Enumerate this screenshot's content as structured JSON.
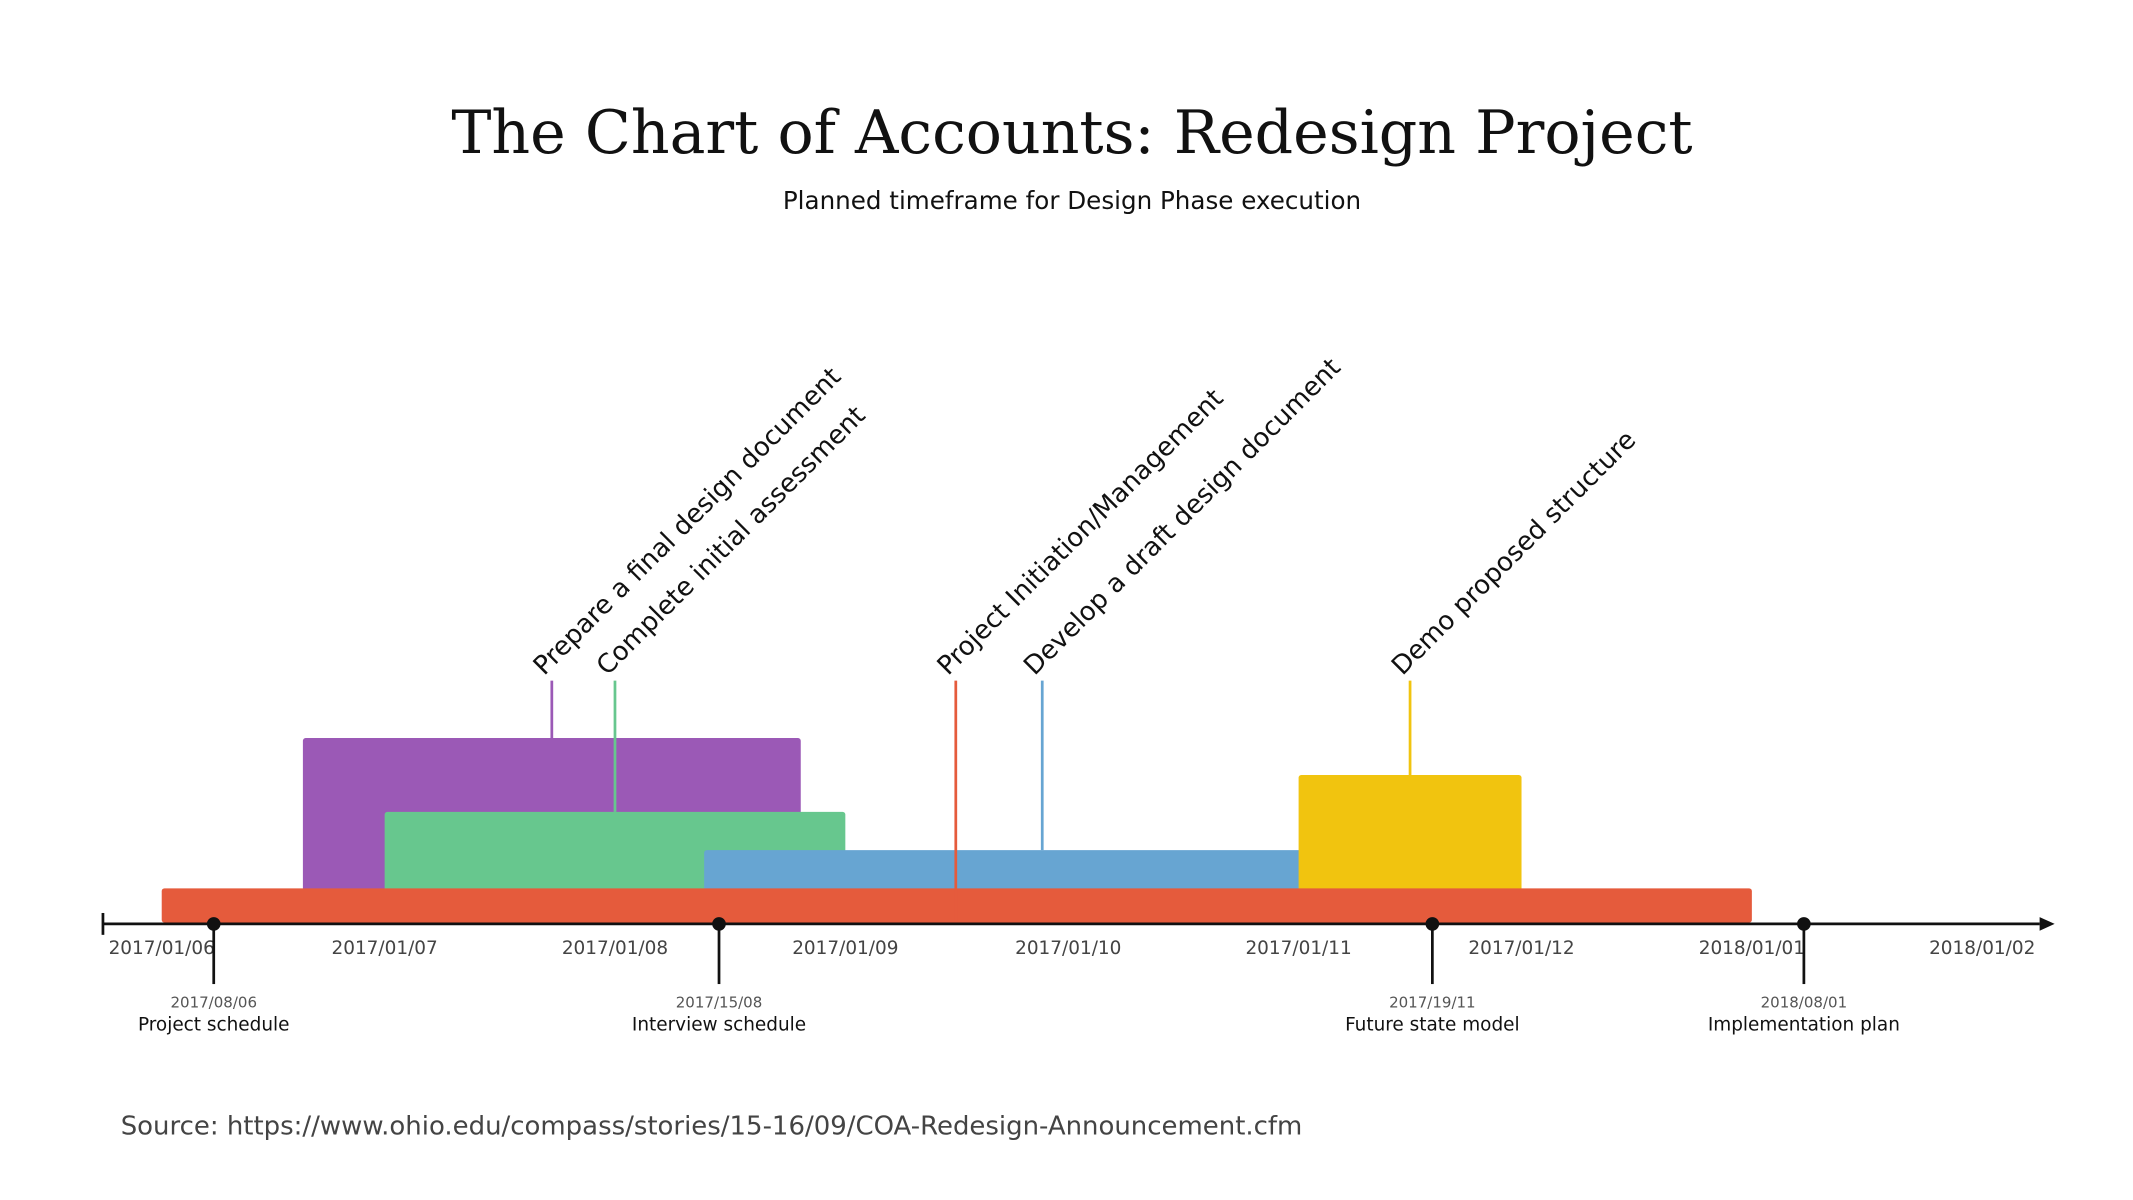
{
  "chart_data": {
    "type": "timeline",
    "title": "The Chart of Accounts: Redesign Project",
    "subtitle": "Planned timeframe for Design Phase execution",
    "source": "Source: https://www.ohio.edu/compass/stories/15-16/09/COA-Redesign-Announcement.cfm",
    "date_format": "YYYY/DD/MM",
    "axis_range": [
      "2017-06-01",
      "2018-02-01"
    ],
    "ticks": [
      {
        "date": "2017-06-01",
        "label": "2017/01/06"
      },
      {
        "date": "2017-07-01",
        "label": "2017/01/07"
      },
      {
        "date": "2017-08-01",
        "label": "2017/01/08"
      },
      {
        "date": "2017-09-01",
        "label": "2017/01/09"
      },
      {
        "date": "2017-10-01",
        "label": "2017/01/10"
      },
      {
        "date": "2017-11-01",
        "label": "2017/01/11"
      },
      {
        "date": "2017-12-01",
        "label": "2017/01/12"
      },
      {
        "date": "2018-01-01",
        "label": "2018/01/01"
      },
      {
        "date": "2018-02-01",
        "label": "2018/01/02"
      }
    ],
    "tasks": [
      {
        "name": "Project Initiation/Management",
        "start": "2017-06-01",
        "end": "2018-01-01",
        "color": "#e55b3c"
      },
      {
        "name": "Prepare a final design document",
        "start": "2017-06-20",
        "end": "2017-08-26",
        "color": "#9b59b6"
      },
      {
        "name": "Complete initial assessment",
        "start": "2017-07-01",
        "end": "2017-09-01",
        "color": "#67c78e"
      },
      {
        "name": "Develop a draft design document",
        "start": "2017-08-13",
        "end": "2017-11-12",
        "color": "#67a5d2"
      },
      {
        "name": "Demo proposed structure",
        "start": "2017-11-01",
        "end": "2017-12-01",
        "color": "#f1c40f"
      }
    ],
    "milestones": [
      {
        "date": "2017-06-08",
        "date_label": "2017/08/06",
        "label": "Project schedule"
      },
      {
        "date": "2017-08-15",
        "date_label": "2017/15/08",
        "label": "Interview schedule"
      },
      {
        "date": "2017-11-19",
        "date_label": "2017/19/11",
        "label": "Future state model"
      },
      {
        "date": "2018-01-08",
        "date_label": "2018/08/01",
        "label": "Implementation plan"
      }
    ]
  }
}
